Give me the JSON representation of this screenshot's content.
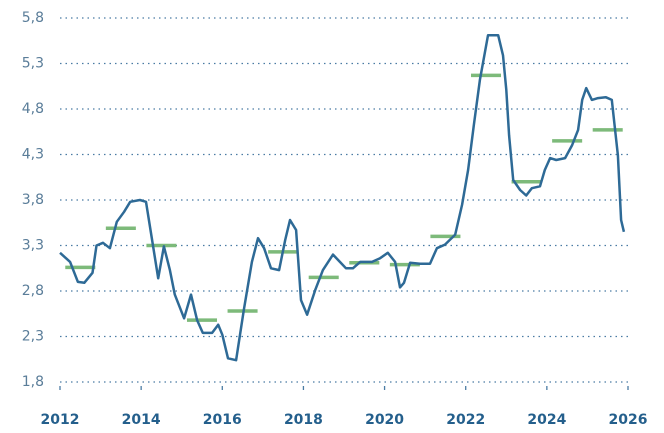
{
  "chart_data": {
    "type": "line",
    "x": [
      2012.0,
      2012.25,
      2012.44,
      2012.6,
      2012.8,
      2012.9,
      2013.06,
      2013.23,
      2013.4,
      2013.58,
      2013.73,
      2013.97,
      2014.12,
      2014.27,
      2014.42,
      2014.56,
      2014.71,
      2014.83,
      2015.06,
      2015.23,
      2015.38,
      2015.52,
      2015.75,
      2015.9,
      2016.0,
      2016.14,
      2016.34,
      2016.53,
      2016.73,
      2016.88,
      2017.03,
      2017.2,
      2017.4,
      2017.55,
      2017.67,
      2017.82,
      2017.94,
      2018.09,
      2018.29,
      2018.48,
      2018.73,
      2018.9,
      2019.05,
      2019.22,
      2019.4,
      2019.69,
      2019.89,
      2020.08,
      2020.26,
      2020.38,
      2020.48,
      2020.63,
      2020.87,
      2021.12,
      2021.29,
      2021.49,
      2021.74,
      2021.91,
      2022.06,
      2022.2,
      2022.35,
      2022.55,
      2022.8,
      2022.92,
      2023.0,
      2023.07,
      2023.17,
      2023.34,
      2023.49,
      2023.63,
      2023.83,
      2023.95,
      2024.08,
      2024.23,
      2024.45,
      2024.62,
      2024.77,
      2024.87,
      2024.97,
      2025.11,
      2025.26,
      2025.45,
      2025.6,
      2025.75,
      2025.83,
      2025.9
    ],
    "series": [
      {
        "color": "#2e6a96",
        "values": [
          3.22,
          3.12,
          2.9,
          2.89,
          3.0,
          3.3,
          3.33,
          3.27,
          3.56,
          3.67,
          3.78,
          3.8,
          3.78,
          3.36,
          2.94,
          3.29,
          3.03,
          2.76,
          2.5,
          2.76,
          2.48,
          2.34,
          2.34,
          2.43,
          2.32,
          2.06,
          2.04,
          2.59,
          3.12,
          3.38,
          3.27,
          3.05,
          3.03,
          3.36,
          3.58,
          3.47,
          2.7,
          2.54,
          2.81,
          3.03,
          3.2,
          3.12,
          3.05,
          3.05,
          3.12,
          3.12,
          3.16,
          3.22,
          3.12,
          2.84,
          2.89,
          3.11,
          3.1,
          3.1,
          3.27,
          3.31,
          3.42,
          3.75,
          4.13,
          4.62,
          5.12,
          5.61,
          5.61,
          5.39,
          5.01,
          4.51,
          4.02,
          3.91,
          3.85,
          3.93,
          3.95,
          4.13,
          4.26,
          4.24,
          4.26,
          4.4,
          4.57,
          4.9,
          5.03,
          4.9,
          4.92,
          4.93,
          4.9,
          4.29,
          3.58,
          3.45
        ]
      }
    ],
    "averages": {
      "color": "#7dba7a",
      "x": [
        2012,
        2013,
        2014,
        2015,
        2016,
        2017,
        2018,
        2019,
        2020,
        2021,
        2022,
        2023,
        2024,
        2025
      ],
      "values": [
        3.06,
        3.49,
        3.3,
        2.48,
        2.58,
        3.23,
        2.95,
        3.11,
        3.09,
        3.4,
        5.17,
        4.0,
        4.45,
        4.57
      ]
    },
    "xlim": [
      2012,
      2026
    ],
    "xticks": [
      2012,
      2014,
      2016,
      2018,
      2020,
      2022,
      2024,
      2026
    ],
    "ylim": [
      1.8,
      5.8
    ],
    "yticks": [
      {
        "value": 1.8,
        "label": "1,8"
      },
      {
        "value": 2.3,
        "label": "2,3"
      },
      {
        "value": 2.8,
        "label": "2,8"
      },
      {
        "value": 3.3,
        "label": "3,3"
      },
      {
        "value": 3.8,
        "label": "3,8"
      },
      {
        "value": 4.3,
        "label": "4,3"
      },
      {
        "value": 4.8,
        "label": "4,8"
      },
      {
        "value": 5.3,
        "label": "5,3"
      },
      {
        "value": 5.8,
        "label": "5,8"
      }
    ],
    "grid": true
  }
}
